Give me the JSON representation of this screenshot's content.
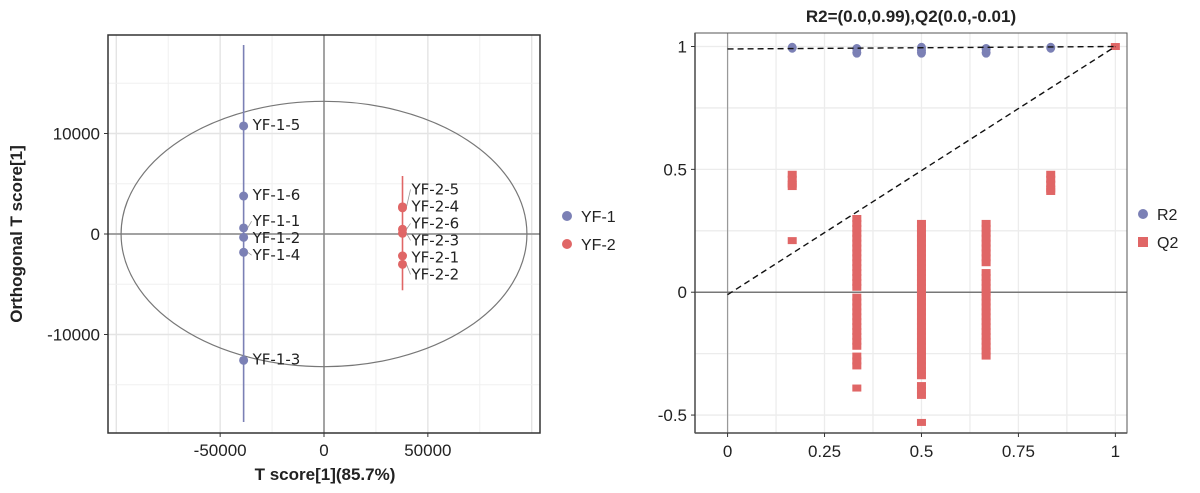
{
  "chart_data": [
    {
      "type": "scatter",
      "xlabel": "T score[1](85.7%)",
      "ylabel": "Orthogonal T score[1]",
      "xlim": [
        -104000,
        104000
      ],
      "ylim": [
        -19800,
        19800
      ],
      "xticks": [
        -50000,
        0,
        50000
      ],
      "yticks": [
        -10000,
        0,
        10000
      ],
      "grid": true,
      "legend_position": "right",
      "ellipse": {
        "center": [
          0,
          0
        ],
        "rx": 97700,
        "ry": 13200
      },
      "series": [
        {
          "name": "YF-1",
          "color": "#7b80b5",
          "line": {
            "x": -38700,
            "y_from": -18700,
            "y_to": 18800
          },
          "points": [
            {
              "label": "YF-1-5",
              "x": -38700,
              "y": 10750
            },
            {
              "label": "YF-1-6",
              "x": -38700,
              "y": 3780
            },
            {
              "label": "YF-1-1",
              "x": -38700,
              "y": 600
            },
            {
              "label": "YF-1-2",
              "x": -38700,
              "y": -330
            },
            {
              "label": "YF-1-4",
              "x": -38700,
              "y": -1820
            },
            {
              "label": "YF-1-3",
              "x": -38700,
              "y": -12570
            }
          ]
        },
        {
          "name": "YF-2",
          "color": "#e06666",
          "line": {
            "x": 37800,
            "y_from": -5600,
            "y_to": 5770
          },
          "points": [
            {
              "label": "YF-2-5",
              "x": 37800,
              "y": 2700
            },
            {
              "label": "YF-2-4",
              "x": 37800,
              "y": 2600
            },
            {
              "label": "YF-2-6",
              "x": 37800,
              "y": 470
            },
            {
              "label": "YF-2-3",
              "x": 37800,
              "y": 70
            },
            {
              "label": "YF-2-1",
              "x": 37800,
              "y": -2180
            },
            {
              "label": "YF-2-2",
              "x": 37800,
              "y": -3020
            }
          ]
        }
      ]
    },
    {
      "type": "scatter",
      "title": "R2=(0.0,0.99),Q2(0.0,-0.01)",
      "xlim": [
        -0.084,
        1.03
      ],
      "ylim": [
        -0.573,
        1.055
      ],
      "xticks": [
        0,
        0.25,
        0.5,
        0.75,
        1
      ],
      "xtick_labels": [
        "0",
        "0.25",
        "0.5",
        "0.75",
        "1"
      ],
      "yticks": [
        -0.5,
        0,
        0.5,
        1
      ],
      "ytick_labels": [
        "-0.5",
        "0",
        "0.5",
        "1"
      ],
      "grid": true,
      "legend_position": "right",
      "series": [
        {
          "name": "R2",
          "color": "#7b80b5",
          "marker": "circle",
          "points": [
            [
              0.1667,
              0.995
            ],
            [
              0.3333,
              0.99
            ],
            [
              0.3333,
              0.975
            ],
            [
              0.5,
              0.995
            ],
            [
              0.5,
              0.985
            ],
            [
              0.5,
              0.975
            ],
            [
              0.6667,
              0.99
            ],
            [
              0.6667,
              0.975
            ],
            [
              0.8333,
              0.995
            ]
          ],
          "fit": [
            [
              0,
              0.99
            ],
            [
              1,
              1.0
            ]
          ]
        },
        {
          "name": "Q2",
          "color": "#e06666",
          "marker": "square",
          "points_by_x": [
            {
              "x": 0.1667,
              "y": [
                0.48,
                0.46,
                0.44,
                0.43,
                0.21
              ]
            },
            {
              "x": 0.3333,
              "y": [
                0.3,
                0.28,
                0.26,
                0.24,
                0.22,
                0.2,
                0.18,
                0.16,
                0.14,
                0.12,
                0.1,
                0.08,
                0.06,
                0.04,
                0.02,
                -0.02,
                -0.04,
                -0.06,
                -0.08,
                -0.1,
                -0.12,
                -0.14,
                -0.16,
                -0.18,
                -0.2,
                -0.22,
                -0.26,
                -0.28,
                -0.3,
                -0.39
              ]
            },
            {
              "x": 0.5,
              "y": [
                0.28,
                0.26,
                0.24,
                0.22,
                0.2,
                0.18,
                0.16,
                0.14,
                0.12,
                0.1,
                0.08,
                0.06,
                0.04,
                0.02,
                0.0,
                -0.02,
                -0.04,
                -0.06,
                -0.08,
                -0.1,
                -0.12,
                -0.14,
                -0.16,
                -0.18,
                -0.2,
                -0.22,
                -0.24,
                -0.26,
                -0.28,
                -0.3,
                -0.32,
                -0.34,
                -0.38,
                -0.4,
                -0.42,
                -0.53
              ]
            },
            {
              "x": 0.6667,
              "y": [
                0.28,
                0.26,
                0.24,
                0.22,
                0.2,
                0.18,
                0.16,
                0.14,
                0.12,
                0.08,
                0.06,
                0.04,
                0.02,
                0.0,
                -0.02,
                -0.04,
                -0.06,
                -0.08,
                -0.1,
                -0.12,
                -0.14,
                -0.16,
                -0.18,
                -0.2,
                -0.22,
                -0.24,
                -0.26
              ]
            },
            {
              "x": 0.8333,
              "y": [
                0.48,
                0.46,
                0.44,
                0.42,
                0.41
              ]
            },
            {
              "x": 1.0,
              "y": [
                1.0
              ]
            }
          ],
          "fit": [
            [
              0,
              -0.01
            ],
            [
              1,
              1.0
            ]
          ]
        }
      ]
    }
  ]
}
